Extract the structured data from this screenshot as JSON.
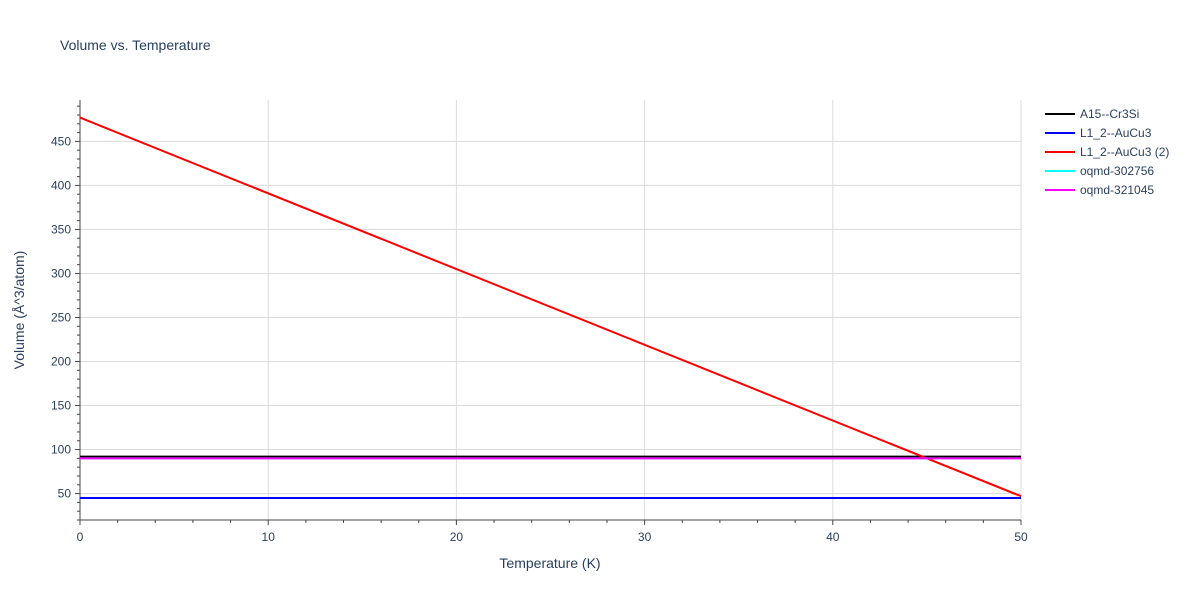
{
  "chart_data": {
    "type": "line",
    "title": "Volume vs. Temperature",
    "xlabel": "Temperature (K)",
    "ylabel": "Volume (Å^3/atom)",
    "xlim": [
      0,
      50
    ],
    "ylim": [
      20,
      497
    ],
    "x_ticks": [
      0,
      10,
      20,
      30,
      40,
      50
    ],
    "y_ticks": [
      50,
      100,
      150,
      200,
      250,
      300,
      350,
      400,
      450
    ],
    "grid": true,
    "legend_position": "top-right-outside",
    "series": [
      {
        "name": "A15--Cr3Si",
        "color": "#000000",
        "x": [
          0,
          50
        ],
        "y": [
          92,
          92
        ]
      },
      {
        "name": "L1_2--AuCu3",
        "color": "#0000ff",
        "x": [
          0,
          50
        ],
        "y": [
          45,
          45
        ]
      },
      {
        "name": "L1_2--AuCu3 (2)",
        "color": "#ff0000",
        "x": [
          0,
          50
        ],
        "y": [
          477,
          47
        ]
      },
      {
        "name": "oqmd-302756",
        "color": "#00ffff",
        "x": [
          0,
          50
        ],
        "y": [
          90,
          90
        ]
      },
      {
        "name": "oqmd-321045",
        "color": "#ff00ff",
        "x": [
          0,
          50
        ],
        "y": [
          90,
          90
        ]
      }
    ]
  }
}
